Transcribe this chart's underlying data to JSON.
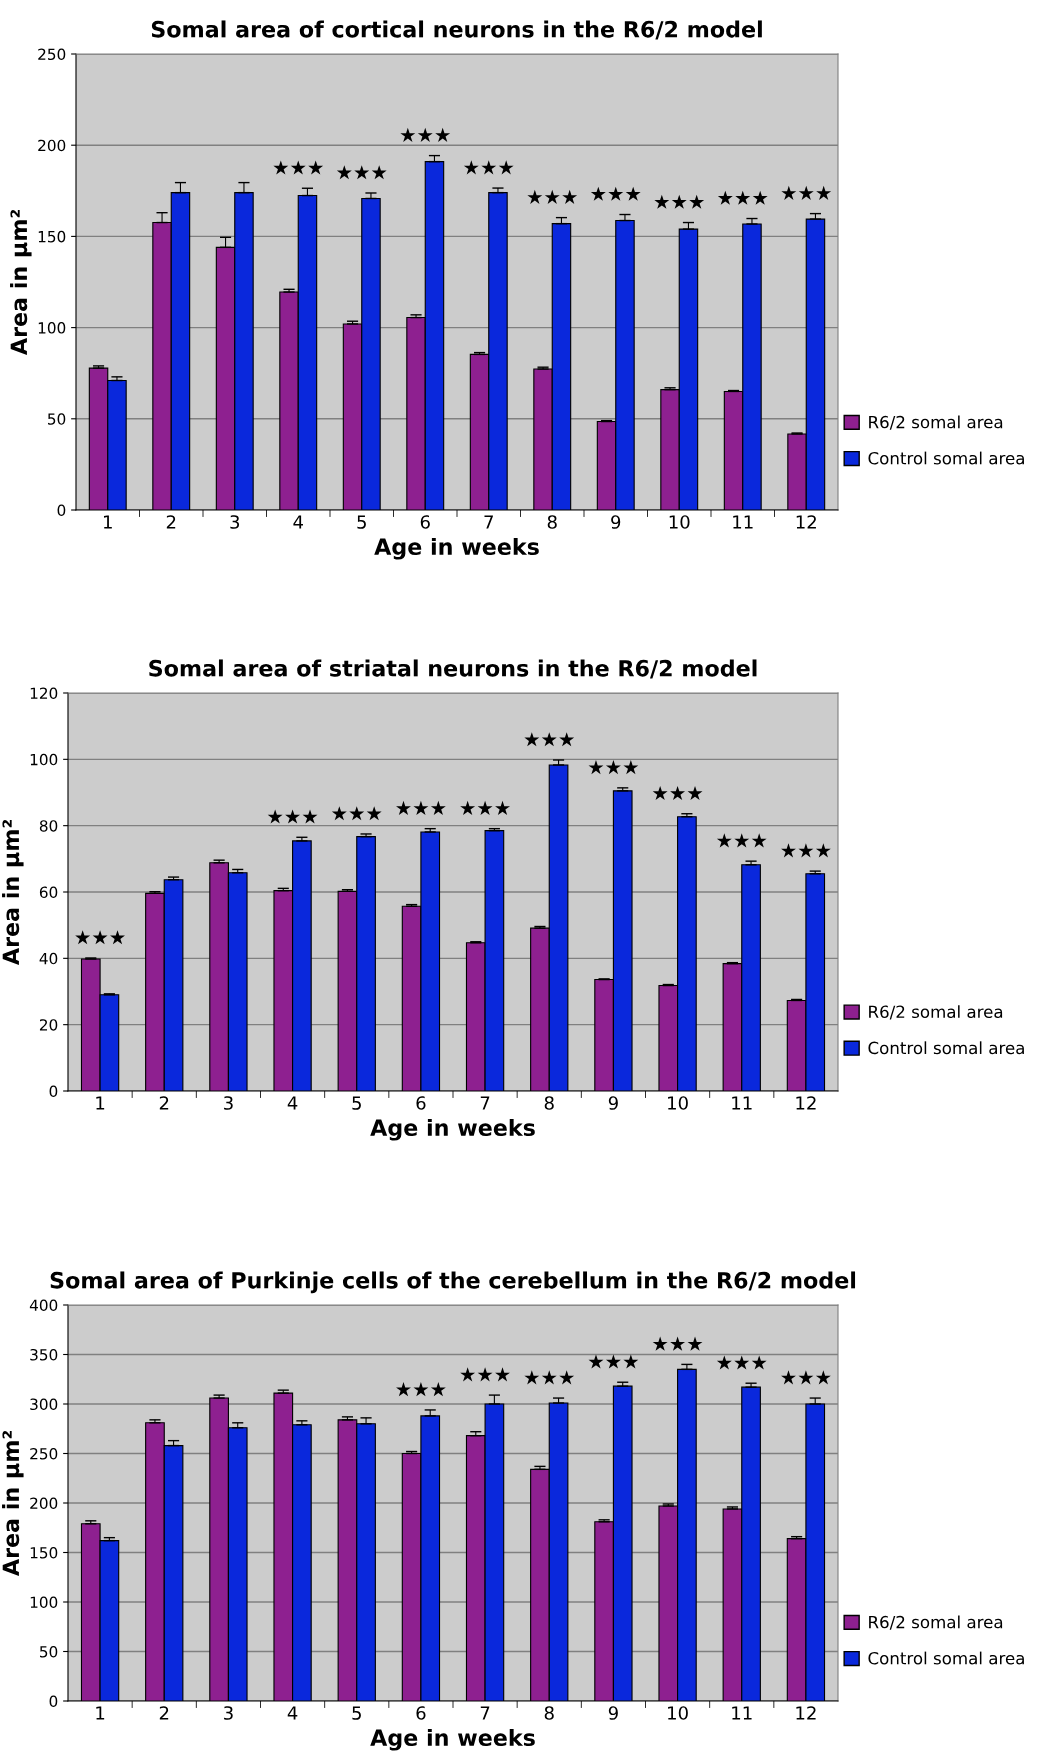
{
  "chart_data": [
    {
      "type": "bar",
      "title": "Somal area of cortical neurons in the R6/2 model",
      "xlabel": "Age in weeks",
      "ylabel": "Area in µm²",
      "categories": [
        "1",
        "2",
        "3",
        "4",
        "5",
        "6",
        "7",
        "8",
        "9",
        "10",
        "11",
        "12"
      ],
      "ylim": [
        0,
        250
      ],
      "yticks": [
        0,
        50,
        100,
        150,
        200,
        250
      ],
      "grid": "y",
      "legend": "right",
      "series": [
        {
          "name": "R6/2 somal area",
          "color": "#8e2090",
          "values": [
            77.8,
            157.6,
            144,
            119.5,
            102,
            105.5,
            85.3,
            77.3,
            48.5,
            66,
            65,
            41.7
          ],
          "errors": [
            [
              77.8,
              79
            ],
            [
              157.6,
              163
            ],
            [
              144,
              149.5
            ],
            [
              119.5,
              121
            ],
            [
              102,
              103.5
            ],
            [
              105.5,
              107
            ],
            [
              85.3,
              86.3
            ],
            [
              77.3,
              78.3
            ],
            [
              48.5,
              49
            ],
            [
              66,
              67
            ],
            [
              65,
              65.5
            ],
            [
              41.7,
              42.2
            ]
          ]
        },
        {
          "name": "Control somal area",
          "color": "#0a28dc",
          "values": [
            71,
            174,
            174,
            172.4,
            170.8,
            191,
            174,
            157,
            158.7,
            154,
            156.8,
            159.5
          ],
          "errors": [
            [
              71,
              73
            ],
            [
              174,
              179.5
            ],
            [
              174,
              179.5
            ],
            [
              172.4,
              176.4
            ],
            [
              170.8,
              173.8
            ],
            [
              191,
              194.3
            ],
            [
              174,
              176.5
            ],
            [
              157,
              160.3
            ],
            [
              158.7,
              162
            ],
            [
              154,
              157.6
            ],
            [
              156.8,
              159.8
            ],
            [
              159.5,
              162.5
            ]
          ]
        }
      ],
      "annotations": [
        {
          "text": "★★★",
          "x": "4",
          "y": 176.4
        },
        {
          "text": "★★★",
          "x": "5",
          "y": 173.8
        },
        {
          "text": "★★★",
          "x": "6",
          "y": 194.3
        },
        {
          "text": "★★★",
          "x": "7",
          "y": 176.5
        },
        {
          "text": "★★★",
          "x": "8",
          "y": 160.3
        },
        {
          "text": "★★★",
          "x": "9",
          "y": 162
        },
        {
          "text": "★★★",
          "x": "10",
          "y": 157.6
        },
        {
          "text": "★★★",
          "x": "11",
          "y": 159.8
        },
        {
          "text": "★★★",
          "x": "12",
          "y": 162.5
        }
      ]
    },
    {
      "type": "bar",
      "title": "Somal area of striatal neurons in the R6/2 model",
      "xlabel": "Age in weeks",
      "ylabel": "Area in µm²",
      "categories": [
        "1",
        "2",
        "3",
        "4",
        "5",
        "6",
        "7",
        "8",
        "9",
        "10",
        "11",
        "12"
      ],
      "ylim": [
        0,
        120
      ],
      "yticks": [
        0,
        20,
        40,
        60,
        80,
        100,
        120
      ],
      "grid": "y",
      "legend": "right",
      "series": [
        {
          "name": "R6/2 somal area",
          "color": "#8e2090",
          "values": [
            39.8,
            59.6,
            68.8,
            60.4,
            60.2,
            55.7,
            44.7,
            49.1,
            33.6,
            31.8,
            38.4,
            27.3
          ],
          "errors": [
            [
              39.8,
              40.1
            ],
            [
              59.6,
              60.1
            ],
            [
              68.8,
              69.6
            ],
            [
              60.4,
              61.1
            ],
            [
              60.2,
              60.7
            ],
            [
              55.7,
              56.2
            ],
            [
              44.7,
              45
            ],
            [
              49.1,
              49.6
            ],
            [
              33.6,
              33.8
            ],
            [
              31.8,
              32.1
            ],
            [
              38.4,
              38.7
            ],
            [
              27.3,
              27.6
            ]
          ]
        },
        {
          "name": "Control somal area",
          "color": "#0a28dc",
          "values": [
            29,
            63.7,
            65.8,
            75.4,
            76.7,
            78.1,
            78.5,
            98.3,
            90.5,
            82.7,
            68.2,
            65.5
          ],
          "errors": [
            [
              29,
              29.3
            ],
            [
              63.7,
              64.5
            ],
            [
              65.8,
              66.8
            ],
            [
              75.4,
              76.5
            ],
            [
              76.7,
              77.5
            ],
            [
              78.1,
              79.1
            ],
            [
              78.5,
              79.1
            ],
            [
              98.3,
              99.8
            ],
            [
              90.5,
              91.4
            ],
            [
              82.7,
              83.6
            ],
            [
              68.2,
              69.3
            ],
            [
              65.5,
              66.3
            ]
          ]
        }
      ],
      "annotations": [
        {
          "text": "★★★",
          "x": "1",
          "y": 40.1
        },
        {
          "text": "★★★",
          "x": "4",
          "y": 76.5
        },
        {
          "text": "★★★",
          "x": "5",
          "y": 77.5
        },
        {
          "text": "★★★",
          "x": "6",
          "y": 79.1
        },
        {
          "text": "★★★",
          "x": "7",
          "y": 79.1
        },
        {
          "text": "★★★",
          "x": "8",
          "y": 99.8
        },
        {
          "text": "★★★",
          "x": "9",
          "y": 91.4
        },
        {
          "text": "★★★",
          "x": "10",
          "y": 83.6
        },
        {
          "text": "★★★",
          "x": "11",
          "y": 69.3
        },
        {
          "text": "★★★",
          "x": "12",
          "y": 66.3
        }
      ]
    },
    {
      "type": "bar",
      "title": "Somal area of Purkinje cells of the cerebellum in the R6/2 model",
      "xlabel": "Age in weeks",
      "ylabel": "Area in µm²",
      "categories": [
        "1",
        "2",
        "3",
        "4",
        "5",
        "6",
        "7",
        "8",
        "9",
        "10",
        "11",
        "12"
      ],
      "ylim": [
        0,
        400
      ],
      "yticks": [
        0,
        50,
        100,
        150,
        200,
        250,
        300,
        350,
        400
      ],
      "grid": "y",
      "legend": "right",
      "series": [
        {
          "name": "R6/2 somal area",
          "color": "#8e2090",
          "values": [
            179,
            281,
            306,
            311,
            284,
            250,
            268,
            234,
            181,
            197,
            194,
            164
          ],
          "errors": [
            [
              179,
              182
            ],
            [
              281,
              284
            ],
            [
              306,
              309
            ],
            [
              311,
              314
            ],
            [
              284,
              287
            ],
            [
              250,
              252
            ],
            [
              268,
              272
            ],
            [
              234,
              237
            ],
            [
              181,
              183
            ],
            [
              197,
              199
            ],
            [
              194,
              196
            ],
            [
              164,
              166
            ]
          ]
        },
        {
          "name": "Control somal area",
          "color": "#0a28dc",
          "values": [
            162,
            258,
            276,
            279,
            280,
            288,
            300,
            301,
            318,
            335,
            317,
            300
          ],
          "errors": [
            [
              162,
              165
            ],
            [
              258,
              263
            ],
            [
              276,
              281
            ],
            [
              279,
              283
            ],
            [
              280,
              286
            ],
            [
              288,
              294
            ],
            [
              300,
              309
            ],
            [
              301,
              306
            ],
            [
              318,
              322
            ],
            [
              335,
              340
            ],
            [
              317,
              321
            ],
            [
              300,
              306
            ]
          ]
        }
      ],
      "annotations": [
        {
          "text": "★★★",
          "x": "6",
          "y": 294
        },
        {
          "text": "★★★",
          "x": "7",
          "y": 309
        },
        {
          "text": "★★★",
          "x": "8",
          "y": 306
        },
        {
          "text": "★★★",
          "x": "9",
          "y": 322
        },
        {
          "text": "★★★",
          "x": "10",
          "y": 340
        },
        {
          "text": "★★★",
          "x": "11",
          "y": 321
        },
        {
          "text": "★★★",
          "x": "12",
          "y": 306
        }
      ]
    }
  ]
}
